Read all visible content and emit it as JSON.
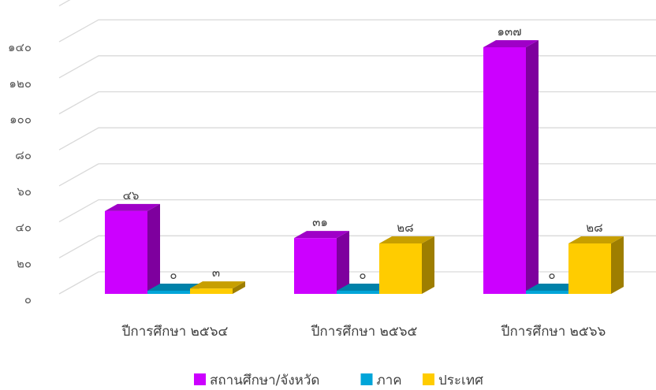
{
  "chart_data": {
    "type": "bar",
    "categories": [
      "ปีการศึกษา ๒๕๖๔",
      "ปีการศึกษา ๒๕๖๕",
      "ปีการศึกษา ๒๕๖๖"
    ],
    "series": [
      {
        "name": "สถานศึกษา/จังหวัด",
        "values": [
          46,
          31,
          137
        ],
        "labels": [
          "๔๖",
          "๓๑",
          "๑๓๗"
        ],
        "color": "#CC00FF"
      },
      {
        "name": "ภาค",
        "values": [
          0,
          0,
          0
        ],
        "labels": [
          "๐",
          "๐",
          "๐"
        ],
        "color": "#00A5D9"
      },
      {
        "name": "ประเทศ",
        "values": [
          3,
          28,
          28
        ],
        "labels": [
          "๓",
          "๒๘",
          "๒๘"
        ],
        "color": "#FFCC00"
      }
    ],
    "y_ticks": [
      {
        "value": 0,
        "label": "๐"
      },
      {
        "value": 20,
        "label": "๒๐"
      },
      {
        "value": 40,
        "label": "๔๐"
      },
      {
        "value": 60,
        "label": "๖๐"
      },
      {
        "value": 80,
        "label": "๘๐"
      },
      {
        "value": 100,
        "label": "๑๐๐"
      },
      {
        "value": 120,
        "label": "๑๒๐"
      },
      {
        "value": 140,
        "label": "๑๔๐"
      }
    ],
    "ylim": [
      0,
      160
    ],
    "grid": true,
    "legend_position": "bottom",
    "style": "3d-column"
  }
}
